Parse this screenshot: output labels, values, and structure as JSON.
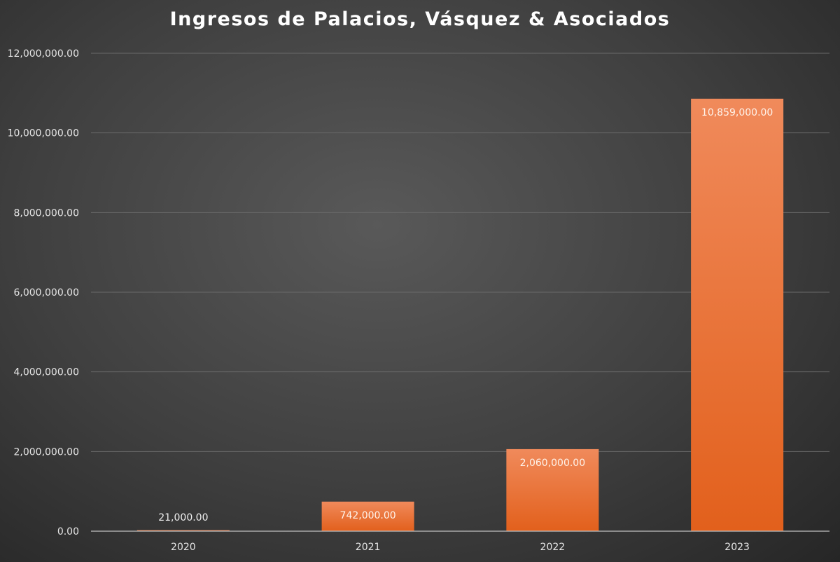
{
  "chart_data": {
    "type": "bar",
    "title": "Ingresos de Palacios, Vásquez & Asociados",
    "categories": [
      "2020",
      "2021",
      "2022",
      "2023"
    ],
    "values": [
      21000,
      742000,
      2060000,
      10859000
    ],
    "data_labels": [
      "21,000.00",
      "742,000.00",
      "2,060,000.00",
      "10,859,000.00"
    ],
    "ylim": [
      0,
      12000000
    ],
    "yticks": [
      0,
      2000000,
      4000000,
      6000000,
      8000000,
      10000000,
      12000000
    ],
    "ytick_labels": [
      "0.00",
      "2,000,000.00",
      "4,000,000.00",
      "6,000,000.00",
      "8,000,000.00",
      "10,000,000.00",
      "12,000,000.00"
    ],
    "xlabel": "",
    "ylabel": "",
    "grid": true,
    "legend": "none"
  },
  "colors": {
    "bar_top": "#f08a5b",
    "bar_bottom": "#e2601c",
    "gridline": "#6a6a6a",
    "axis_line": "#bfbfbf"
  }
}
